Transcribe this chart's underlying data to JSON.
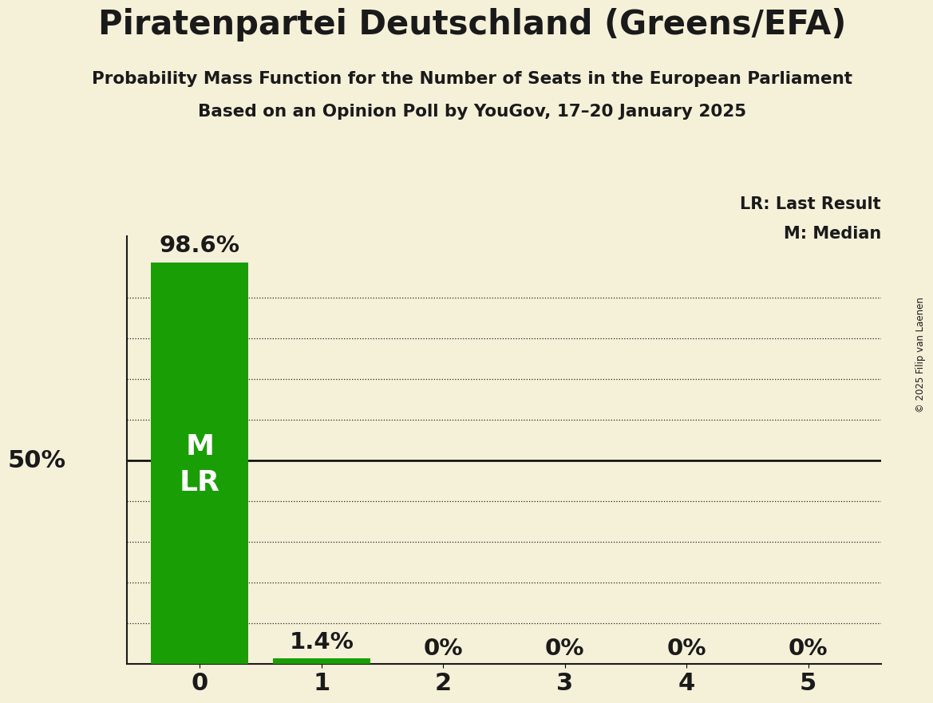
{
  "title": "Piratenpartei Deutschland (Greens/EFA)",
  "subtitle": "Probability Mass Function for the Number of Seats in the European Parliament",
  "subsubtitle": "Based on an Opinion Poll by YouGov, 17–20 January 2025",
  "copyright": "© 2025 Filip van Laenen",
  "categories": [
    0,
    1,
    2,
    3,
    4,
    5
  ],
  "values": [
    0.986,
    0.014,
    0.0,
    0.0,
    0.0,
    0.0
  ],
  "bar_color": "#1a9e06",
  "background_color": "#f5f0d8",
  "text_color": "#1a1a1a",
  "ylabel_50": "50%",
  "bar_labels": [
    "98.6%",
    "1.4%",
    "0%",
    "0%",
    "0%",
    "0%"
  ],
  "median": 0,
  "last_result": 0,
  "legend_lr": "LR: Last Result",
  "legend_m": "M: Median",
  "ylim": [
    0,
    1.05
  ],
  "grid_levels": [
    0.1,
    0.2,
    0.3,
    0.4,
    0.5,
    0.6,
    0.7,
    0.8,
    0.9
  ],
  "solid_line": 0.5
}
